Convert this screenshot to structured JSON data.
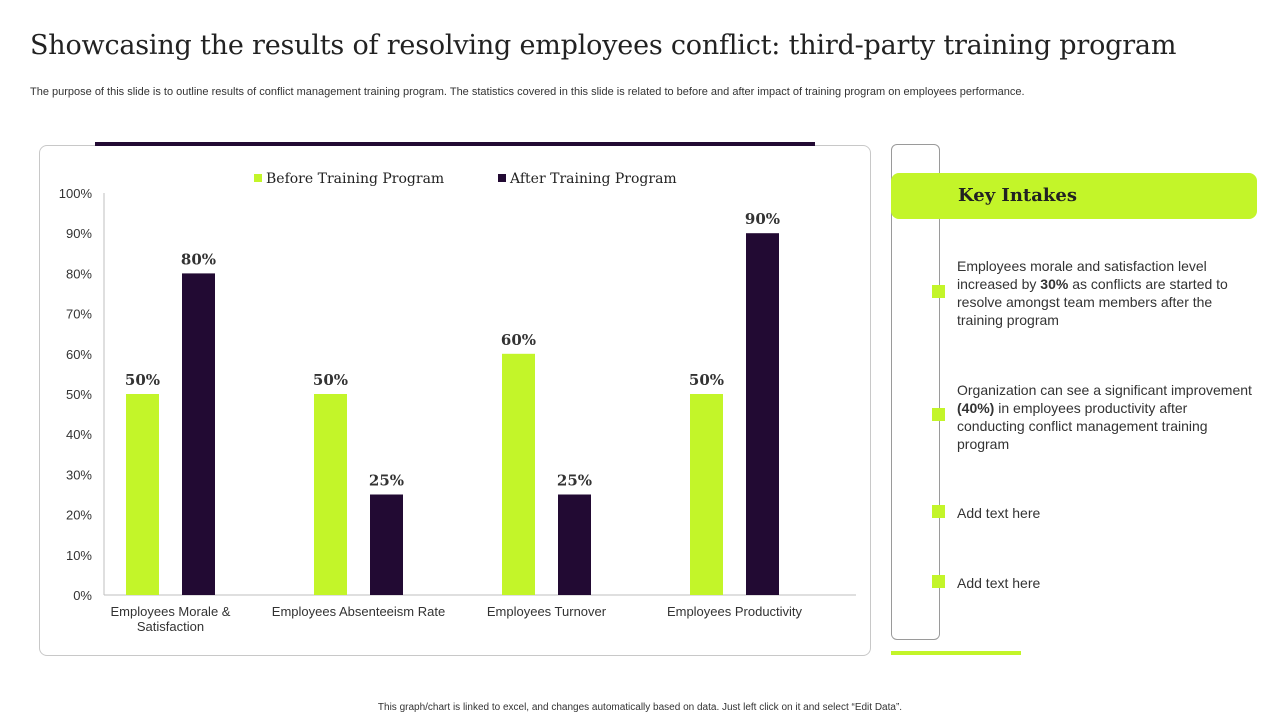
{
  "title": "Showcasing the results of resolving employees conflict: third-party training program",
  "subtitle": "The purpose of this slide is to outline results of conflict management training program. The statistics covered in this slide is related to before and after impact of training program on employees performance.",
  "colors": {
    "before": "#c3f529",
    "after": "#220a33"
  },
  "chart_data": {
    "type": "bar",
    "title": "",
    "xlabel": "",
    "ylabel": "",
    "ylim": [
      0,
      100
    ],
    "yticks": [
      "0%",
      "10%",
      "20%",
      "30%",
      "40%",
      "50%",
      "60%",
      "70%",
      "80%",
      "90%",
      "100%"
    ],
    "categories": [
      [
        "Employees Morale &",
        "Satisfaction"
      ],
      [
        "Employees Absenteeism Rate"
      ],
      [
        "Employees Turnover"
      ],
      [
        "Employees Productivity"
      ]
    ],
    "series": [
      {
        "name": "Before Training Program",
        "values": [
          50,
          50,
          60,
          50
        ],
        "labels": [
          "50%",
          "50%",
          "60%",
          "50%"
        ]
      },
      {
        "name": "After Training Program",
        "values": [
          80,
          25,
          25,
          90
        ],
        "labels": [
          "80%",
          "25%",
          "25%",
          "90%"
        ]
      }
    ],
    "legend": "top",
    "grid": false
  },
  "key_intakes": {
    "heading": "Key Intakes",
    "points": [
      {
        "pre": "Employees morale and satisfaction level increased by ",
        "bold": "30%",
        "post": " as conflicts are started to resolve amongst team members after the training program"
      },
      {
        "pre": "Organization can see a significant improvement ",
        "bold": "(40%)",
        "post": " in employees productivity after conducting conflict management training program"
      },
      {
        "pre": "Add text here",
        "bold": "",
        "post": ""
      },
      {
        "pre": "Add text here",
        "bold": "",
        "post": ""
      }
    ]
  },
  "footer": "This graph/chart is linked to excel, and changes automatically based on data. Just left click on it and select “Edit Data”."
}
